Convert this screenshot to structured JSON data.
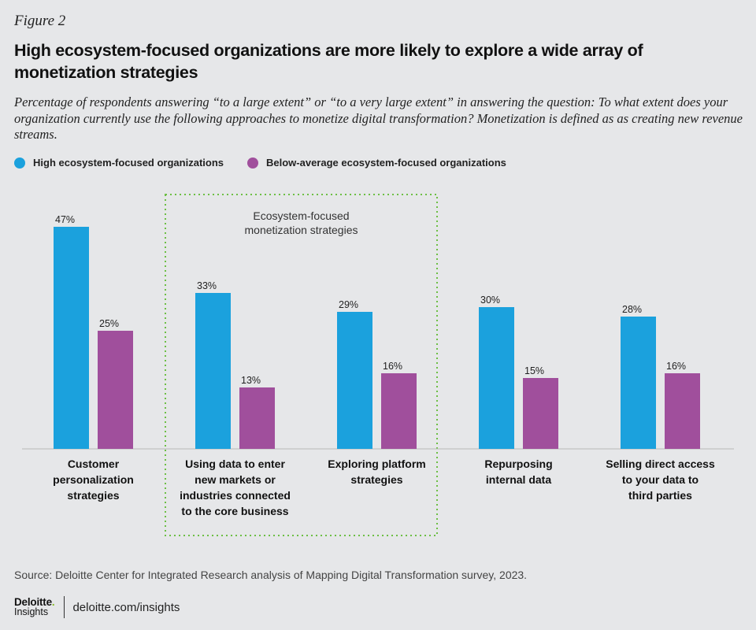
{
  "figure_label": "Figure 2",
  "title": "High ecosystem-focused organizations are more likely to explore a wide array of monetization strategies",
  "subtitle": "Percentage of respondents answering “to a large extent” or “to a very large extent” in answering the question: To what extent does your organization currently use the following approaches to monetize digital transformation? Monetization is defined as as creating new revenue streams.",
  "source": "Source: Deloitte Center for Integrated Research analysis of Mapping Digital Transformation survey, 2023.",
  "footer": {
    "brand": "Deloitte",
    "brand_dot": ".",
    "brand_sub": "Insights",
    "url": "deloitte.com/insights"
  },
  "colors": {
    "high": "#1ba1dd",
    "below": "#a04f9c",
    "highlight_border": "#6dbf45",
    "axis": "#b8b8b8"
  },
  "chart_data": {
    "type": "bar",
    "ylim": [
      0,
      50
    ],
    "unit": "%",
    "grid": false,
    "legend_position": "top-left",
    "categories": [
      [
        "Customer",
        "personalization",
        "strategies"
      ],
      [
        "Using data to enter",
        "new markets or",
        "industries connected",
        "to the core business"
      ],
      [
        "Exploring platform",
        "strategies"
      ],
      [
        "Repurposing",
        "internal data"
      ],
      [
        "Selling direct access",
        "to your data to",
        "third parties"
      ]
    ],
    "series": [
      {
        "name": "High ecosystem-focused organizations",
        "values": [
          47,
          33,
          29,
          30,
          28
        ]
      },
      {
        "name": "Below-average ecosystem-focused organizations",
        "values": [
          25,
          13,
          16,
          15,
          16
        ]
      }
    ],
    "annotation": {
      "text": [
        "Ecosystem-focused",
        "monetization strategies"
      ],
      "categories": [
        1,
        2
      ]
    }
  }
}
